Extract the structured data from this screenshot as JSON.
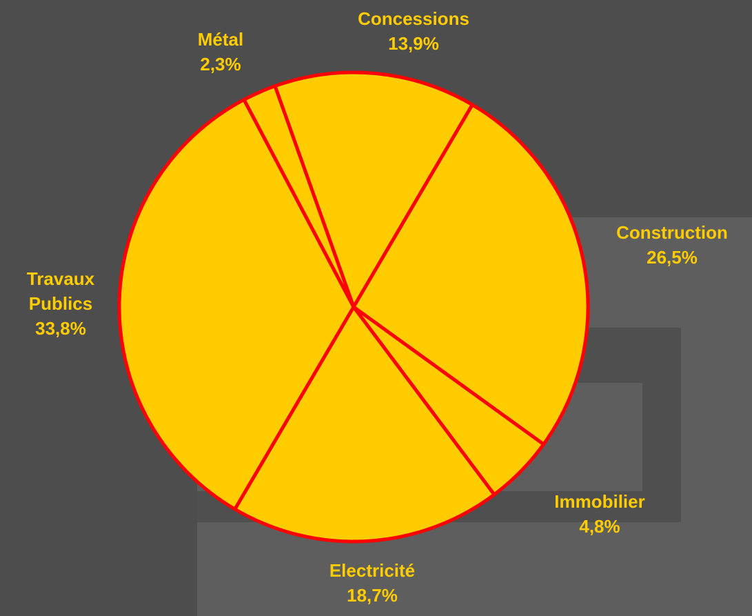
{
  "chart_data": {
    "type": "pie",
    "categories": [
      "Concessions",
      "Construction",
      "Immobilier",
      "Electricité",
      "Travaux Publics",
      "Métal"
    ],
    "values": [
      13.9,
      26.5,
      4.8,
      18.7,
      33.8,
      2.3
    ],
    "value_labels": [
      "13,9%",
      "26,5%",
      "4,8%",
      "18,7%",
      "33,8%",
      "2,3%"
    ],
    "color": "#ffcc00",
    "edge_color": "#ff0000"
  }
}
